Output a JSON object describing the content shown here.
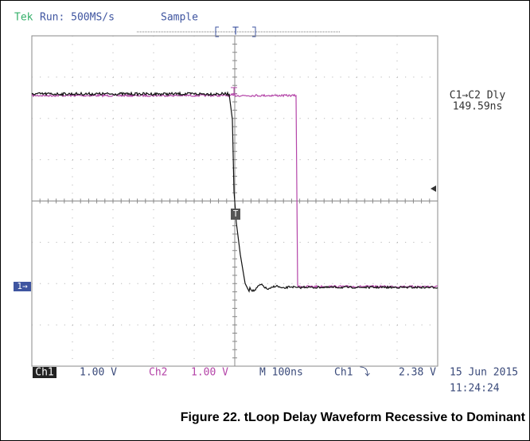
{
  "header": {
    "brand": "Tek",
    "status": "Run: 500MS/s",
    "mode": "Sample",
    "trigger_position": "T"
  },
  "measurement": {
    "label": "C1→C2 Dly",
    "value": "149.59ns"
  },
  "markers": {
    "ground": "1→",
    "trigger": "T"
  },
  "footer": {
    "ch1": "Ch1",
    "ch1_scale": "1.00 V",
    "ch2": "Ch2",
    "ch2_scale": "1.00 V",
    "timebase": "M 100ns",
    "trigger_source": "Ch1",
    "trigger_slope": "⤵",
    "trigger_level": "2.38 V",
    "date": "15 Jun 2015",
    "time": "11:24:24"
  },
  "caption": "Figure 22. tLoop Delay Waveform Recessive to Dominant"
}
